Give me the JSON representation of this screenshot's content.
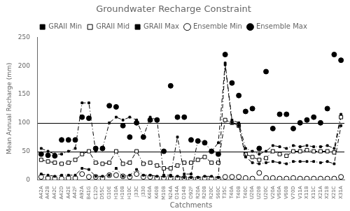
{
  "chart_data": {
    "type": "line",
    "title": "Groundwater Recharge Constraint",
    "xlabel": "Catchments",
    "ylabel": "Mean Annual Recharge (mm)",
    "categories": [
      "A42A",
      "A42B",
      "A42C",
      "A42D",
      "A42E",
      "A42F",
      "A92A",
      "B41G",
      "C12D",
      "D55C",
      "G10E",
      "H10A",
      "H10B",
      "H10C",
      "J33C",
      "J330",
      "K40A",
      "K40B",
      "M10B",
      "N24A",
      "O14A",
      "O14B",
      "O92F",
      "R20A",
      "R20B",
      "R20C",
      "S60C",
      "T35C",
      "T40A",
      "T40B",
      "T40C",
      "U20A",
      "U20B",
      "U20C",
      "V20A",
      "V60A",
      "V60B",
      "V70D",
      "V11A",
      "X11B",
      "X11C",
      "X21A",
      "X21B",
      "X21C",
      "X31A"
    ],
    "series": [
      {
        "name": "GRAII Min",
        "color": "#000000",
        "marker": "square",
        "line_style": "dashdot",
        "values": [
          10,
          8,
          6,
          8,
          8,
          8,
          20,
          18,
          6,
          6,
          8,
          20,
          6,
          8,
          18,
          8,
          8,
          6,
          6,
          6,
          6,
          4,
          4,
          4,
          6,
          6,
          4,
          202,
          100,
          95,
          40,
          30,
          28,
          30,
          32,
          30,
          28,
          32,
          32,
          32,
          32,
          30,
          32,
          28,
          95
        ]
      },
      {
        "name": "GRAII Mid",
        "color": "#000000",
        "marker": "open-square",
        "line_style": "dashdot",
        "values": [
          35,
          32,
          30,
          28,
          30,
          35,
          45,
          50,
          30,
          28,
          30,
          50,
          28,
          30,
          50,
          28,
          30,
          25,
          20,
          20,
          25,
          30,
          30,
          35,
          40,
          30,
          30,
          105,
          100,
          95,
          45,
          40,
          35,
          38,
          50,
          45,
          42,
          50,
          50,
          52,
          50,
          50,
          50,
          48,
          110
        ]
      },
      {
        "name": "GRAII Max",
        "color": "#000000",
        "marker": "square",
        "line_style": "dashdot",
        "values": [
          55,
          50,
          45,
          45,
          50,
          55,
          135,
          135,
          50,
          55,
          100,
          110,
          105,
          110,
          105,
          75,
          110,
          105,
          8,
          8,
          75,
          10,
          10,
          70,
          65,
          50,
          65,
          205,
          105,
          100,
          55,
          50,
          45,
          50,
          60,
          58,
          55,
          60,
          58,
          60,
          58,
          58,
          60,
          55,
          115
        ]
      },
      {
        "name": "Ensemble Min",
        "color": "#000000",
        "marker": "open-circle",
        "line_style": "none",
        "values": [
          5,
          3,
          2,
          2,
          3,
          3,
          10,
          5,
          5,
          3,
          8,
          8,
          6,
          5,
          10,
          5,
          5,
          3,
          3,
          3,
          3,
          3,
          2,
          2,
          3,
          2,
          2,
          5,
          5,
          5,
          3,
          2,
          12,
          3,
          3,
          2,
          2,
          3,
          2,
          2,
          2,
          2,
          2,
          2,
          5
        ]
      },
      {
        "name": "Ensemble Max",
        "color": "#000000",
        "marker": "circle",
        "line_style": "none",
        "values": [
          45,
          43,
          42,
          70,
          70,
          70,
          110,
          108,
          55,
          55,
          130,
          128,
          95,
          75,
          100,
          75,
          105,
          105,
          50,
          165,
          110,
          110,
          70,
          68,
          65,
          50,
          45,
          220,
          170,
          148,
          120,
          125,
          55,
          190,
          90,
          115,
          115,
          90,
          100,
          105,
          110,
          100,
          125,
          220,
          210
        ]
      }
    ],
    "reference_lines": [
      50,
      100
    ],
    "ylim": [
      0,
      250
    ],
    "yticks": [
      0,
      50,
      100,
      150,
      200,
      250
    ],
    "grid": false,
    "legend": "top"
  }
}
